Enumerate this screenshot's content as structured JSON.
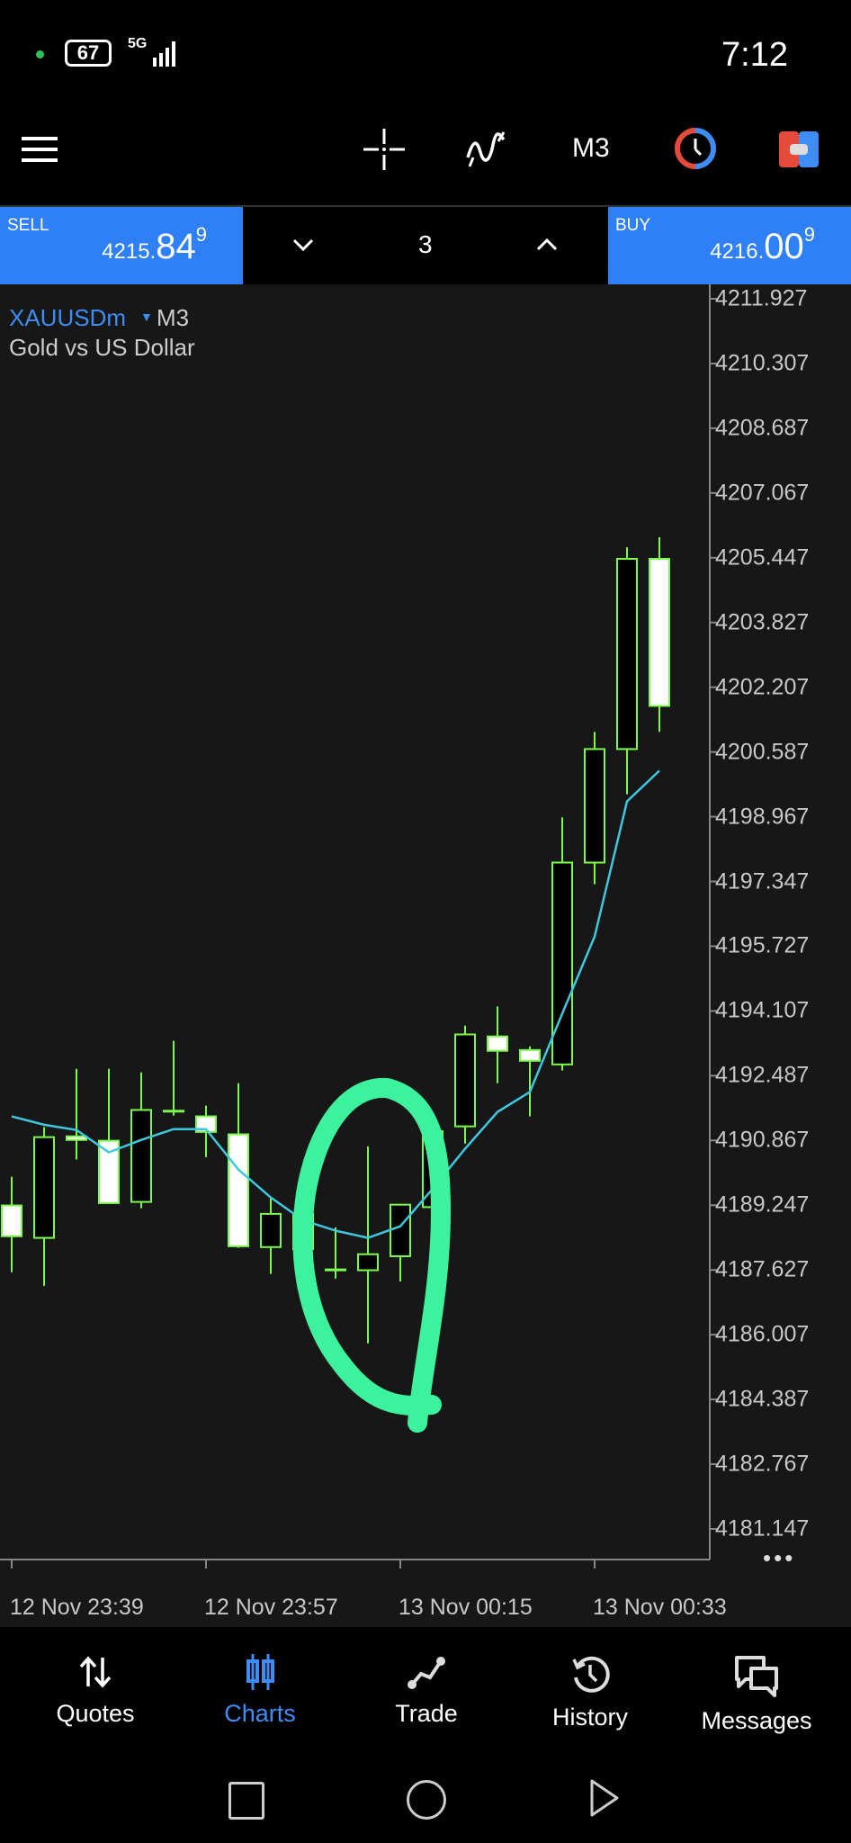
{
  "status_bar": {
    "battery": "67",
    "network": "5G",
    "time": "7:12"
  },
  "toolbar": {
    "timeframe": "M3",
    "icons": [
      "menu-icon",
      "crosshair-icon",
      "indicators-icon",
      "timeframe",
      "clock-icon",
      "one-click-trading-icon"
    ]
  },
  "trade_bar": {
    "sell_label": "SELL",
    "sell_price_prefix": "4215.",
    "sell_price_big": "84",
    "sell_price_sup": "9",
    "buy_label": "BUY",
    "buy_price_prefix": "4216.",
    "buy_price_big": "00",
    "buy_price_sup": "9",
    "volume": "3"
  },
  "symbol": {
    "name": "XAUUSDm",
    "timeframe": "M3",
    "description": "Gold vs US Dollar"
  },
  "colors": {
    "accent": "#2f80f6",
    "candle_outline": "#7cfc4a",
    "ma_line": "#3ec8e0",
    "annotation": "#3cf29c",
    "background": "#171717"
  },
  "chart_data": {
    "type": "candlestick",
    "price_axis_labels": [
      "4211.927",
      "4210.307",
      "4208.687",
      "4207.067",
      "4205.447",
      "4203.827",
      "4202.207",
      "4200.587",
      "4198.967",
      "4197.347",
      "4195.727",
      "4194.107",
      "4192.487",
      "4190.867",
      "4189.247",
      "4187.627",
      "4186.007",
      "4184.387",
      "4182.767",
      "4181.147"
    ],
    "time_axis_labels": [
      {
        "label": "12 Nov 23:39",
        "candle": 0
      },
      {
        "label": "12 Nov 23:57",
        "candle": 6
      },
      {
        "label": "13 Nov 00:15",
        "candle": 12
      },
      {
        "label": "13 Nov 00:33",
        "candle": 18
      }
    ],
    "candles": [
      {
        "o": 4189.24,
        "h": 4189.96,
        "l": 4187.57,
        "c": 4188.47
      },
      {
        "o": 4188.43,
        "h": 4191.2,
        "l": 4187.23,
        "c": 4190.95
      },
      {
        "o": 4190.97,
        "h": 4192.66,
        "l": 4190.39,
        "c": 4190.88
      },
      {
        "o": 4190.86,
        "h": 4192.66,
        "l": 4189.28,
        "c": 4189.3
      },
      {
        "o": 4189.33,
        "h": 4192.57,
        "l": 4189.17,
        "c": 4191.63
      },
      {
        "o": 4191.6,
        "h": 4193.36,
        "l": 4191.49,
        "c": 4191.6
      },
      {
        "o": 4191.47,
        "h": 4191.74,
        "l": 4190.45,
        "c": 4191.08
      },
      {
        "o": 4191.02,
        "h": 4192.3,
        "l": 4188.18,
        "c": 4188.22
      },
      {
        "o": 4188.2,
        "h": 4189.44,
        "l": 4187.53,
        "c": 4189.03
      },
      {
        "o": 4189.03,
        "h": 4189.2,
        "l": 4187.9,
        "c": 4188.15
      },
      {
        "o": 4187.63,
        "h": 4188.69,
        "l": 4187.41,
        "c": 4187.63
      },
      {
        "o": 4187.62,
        "h": 4190.72,
        "l": 4185.79,
        "c": 4188.02
      },
      {
        "o": 4187.97,
        "h": 4189.28,
        "l": 4187.34,
        "c": 4189.26
      },
      {
        "o": 4189.2,
        "h": 4191.2,
        "l": 4189.0,
        "c": 4191.1
      },
      {
        "o": 4191.22,
        "h": 4193.74,
        "l": 4190.79,
        "c": 4193.52
      },
      {
        "o": 4193.47,
        "h": 4194.22,
        "l": 4192.3,
        "c": 4193.11
      },
      {
        "o": 4193.13,
        "h": 4193.22,
        "l": 4191.47,
        "c": 4192.86
      },
      {
        "o": 4192.77,
        "h": 4198.95,
        "l": 4192.62,
        "c": 4197.82
      },
      {
        "o": 4197.82,
        "h": 4201.09,
        "l": 4197.28,
        "c": 4200.66
      },
      {
        "o": 4200.66,
        "h": 4205.71,
        "l": 4199.53,
        "c": 4205.42
      },
      {
        "o": 4205.42,
        "h": 4205.96,
        "l": 4201.09,
        "c": 4201.74
      }
    ],
    "moving_average": [
      4191.47,
      4191.26,
      4191.13,
      4190.57,
      4190.88,
      4191.15,
      4191.15,
      4190.14,
      4189.44,
      4188.87,
      4188.61,
      4188.43,
      4188.72,
      4189.66,
      4190.66,
      4191.58,
      4192.08,
      4194.04,
      4195.97,
      4199.35,
      4200.12
    ],
    "ylim": [
      4180.5,
      4212.2
    ]
  },
  "bottom_nav": {
    "items": [
      {
        "label": "Quotes",
        "icon": "quotes-arrows-icon",
        "active": false
      },
      {
        "label": "Charts",
        "icon": "charts-candles-icon",
        "active": true
      },
      {
        "label": "Trade",
        "icon": "trade-line-icon",
        "active": false
      },
      {
        "label": "History",
        "icon": "history-icon",
        "active": false
      },
      {
        "label": "Messages",
        "icon": "messages-icon",
        "active": false
      }
    ]
  }
}
